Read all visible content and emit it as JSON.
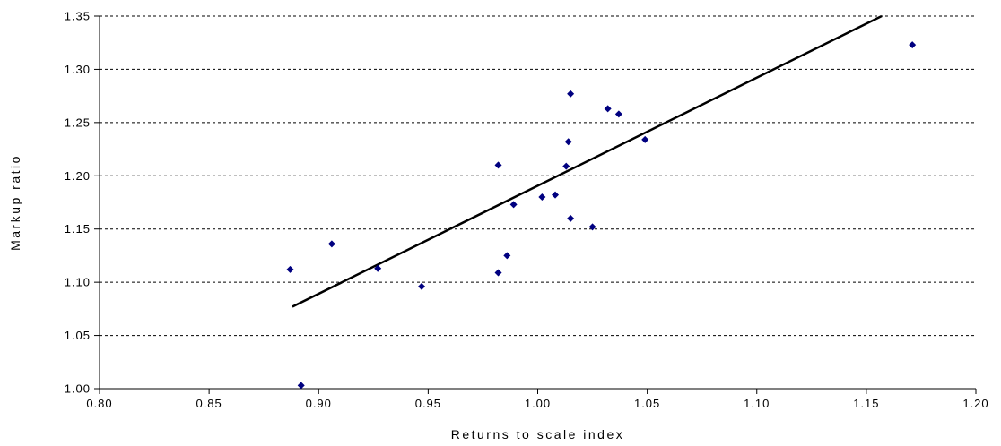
{
  "chart_data": {
    "type": "scatter",
    "title": "",
    "xlabel": "Returns to scale index",
    "ylabel": "Markup ratio",
    "xlim": [
      0.8,
      1.2
    ],
    "ylim": [
      1.0,
      1.35
    ],
    "x_ticks": [
      "0.80",
      "0.85",
      "0.90",
      "0.95",
      "1.00",
      "1.05",
      "1.10",
      "1.15",
      "1.20"
    ],
    "y_ticks": [
      "1.00",
      "1.05",
      "1.10",
      "1.15",
      "1.20",
      "1.25",
      "1.30",
      "1.35"
    ],
    "grid": "horizontal dashed",
    "legend": "none",
    "marker_color": "#000080",
    "line_color": "#000000",
    "points": [
      {
        "x": 0.887,
        "y": 1.112
      },
      {
        "x": 0.892,
        "y": 1.003
      },
      {
        "x": 0.906,
        "y": 1.136
      },
      {
        "x": 0.927,
        "y": 1.113
      },
      {
        "x": 0.947,
        "y": 1.096
      },
      {
        "x": 0.982,
        "y": 1.21
      },
      {
        "x": 0.982,
        "y": 1.109
      },
      {
        "x": 0.986,
        "y": 1.125
      },
      {
        "x": 0.989,
        "y": 1.173
      },
      {
        "x": 1.002,
        "y": 1.18
      },
      {
        "x": 1.008,
        "y": 1.182
      },
      {
        "x": 1.013,
        "y": 1.209
      },
      {
        "x": 1.014,
        "y": 1.232
      },
      {
        "x": 1.015,
        "y": 1.16
      },
      {
        "x": 1.015,
        "y": 1.277
      },
      {
        "x": 1.025,
        "y": 1.152
      },
      {
        "x": 1.032,
        "y": 1.263
      },
      {
        "x": 1.037,
        "y": 1.258
      },
      {
        "x": 1.049,
        "y": 1.234
      },
      {
        "x": 1.171,
        "y": 1.323
      }
    ],
    "trendline": {
      "x": [
        0.888,
        1.157
      ],
      "y": [
        1.077,
        1.35
      ]
    }
  }
}
